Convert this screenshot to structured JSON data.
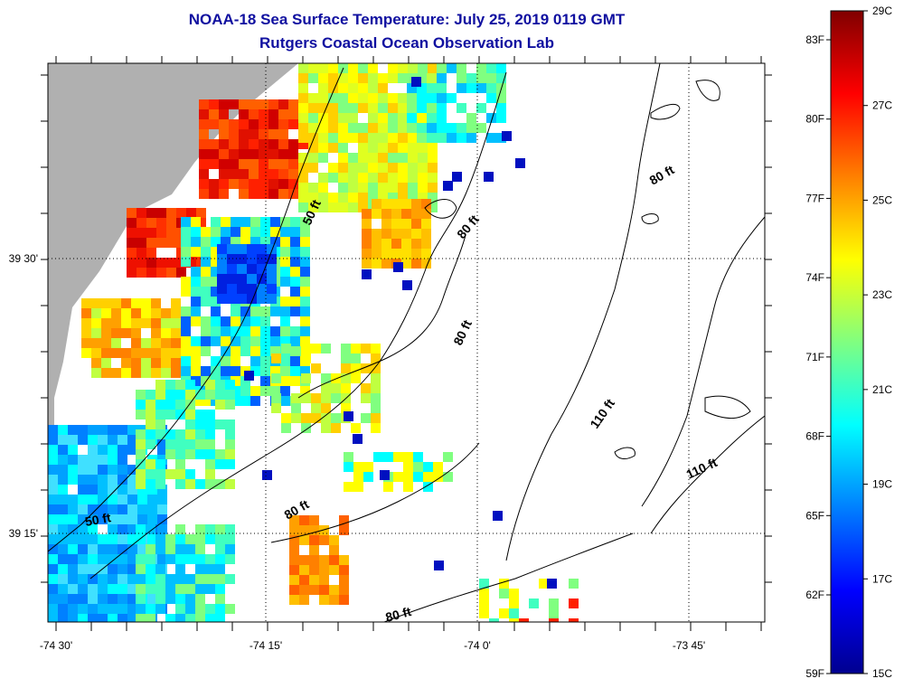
{
  "title": {
    "line1": "NOAA-18 Sea Surface Temperature:  July 25, 2019 0119 GMT",
    "line2": "Rutgers Coastal Ocean Observation Lab"
  },
  "axes": {
    "x_ticks": [
      "-74 30'",
      "-74 15'",
      "-74 0'",
      "-73 45'"
    ],
    "y_ticks": [
      "39 30'",
      "39 15'"
    ]
  },
  "depth_contours": [
    "50 ft",
    "50 ft",
    "80 ft",
    "80 ft",
    "80 ft",
    "80 ft",
    "80 ft",
    "110 ft",
    "110 ft"
  ],
  "colorbar": {
    "celsius": [
      "29C",
      "27C",
      "25C",
      "23C",
      "21C",
      "19C",
      "17C",
      "15C"
    ],
    "fahrenheit": [
      "83F",
      "80F",
      "77F",
      "74F",
      "71F",
      "68F",
      "65F",
      "62F",
      "59F"
    ],
    "colors": [
      "#00008f",
      "#0000ff",
      "#0080ff",
      "#00ffff",
      "#80ff80",
      "#ffff00",
      "#ff8000",
      "#ff0000",
      "#800000"
    ]
  },
  "colors": {
    "land": "#b0b0b0",
    "title": "#1010a0"
  }
}
